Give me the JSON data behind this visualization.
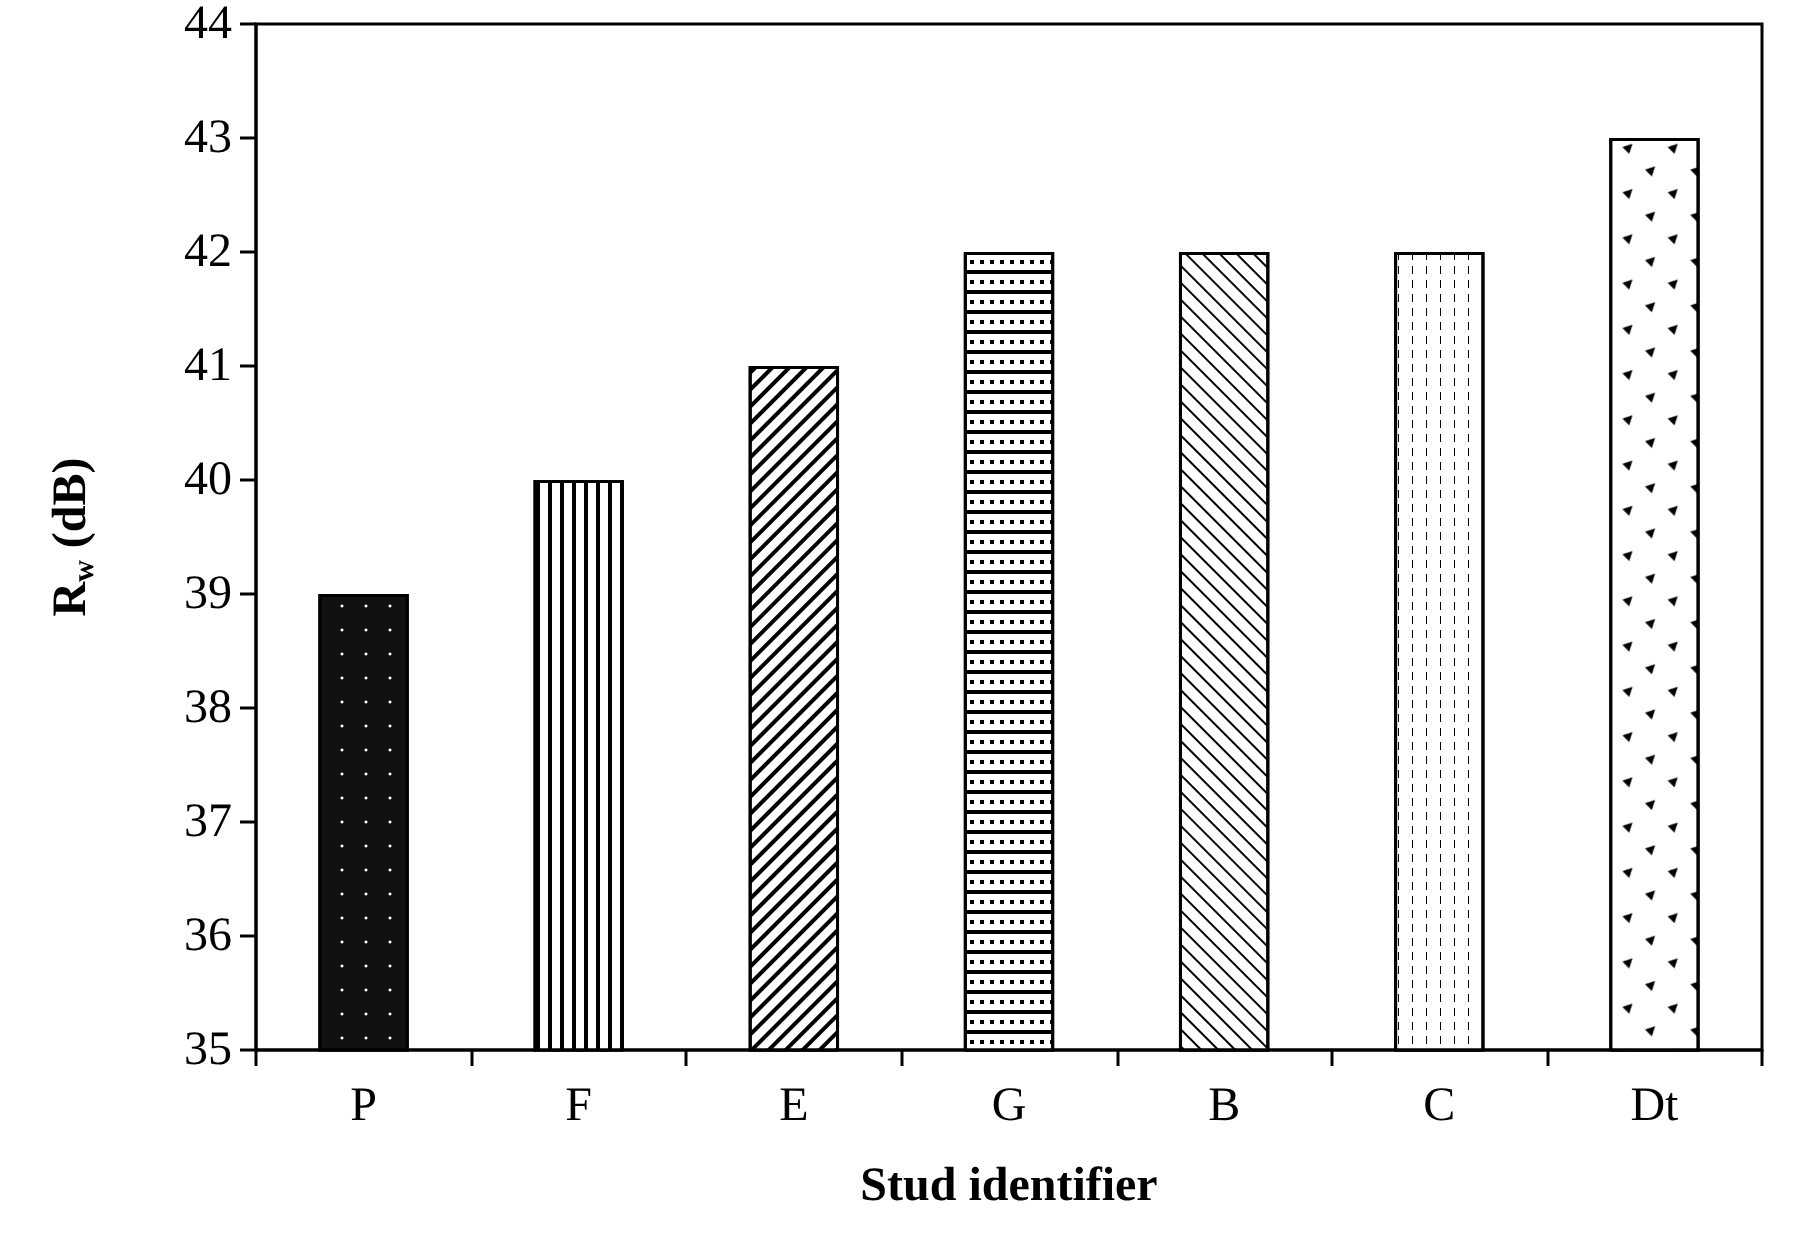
{
  "chart_data": {
    "type": "bar",
    "xlabel": "Stud identifier",
    "ylabel": "R$_{w}$ (dB)",
    "categories": [
      "P",
      "F",
      "E",
      "G",
      "B",
      "C",
      "Dt"
    ],
    "values": [
      39,
      40,
      41,
      42,
      42,
      42,
      43
    ],
    "colors": [
      "#111111",
      "#ffffff",
      "#ffffff",
      "#ffffff",
      "#ffffff",
      "#ffffff",
      "#ffffff"
    ],
    "ylim": [
      35,
      44
    ],
    "yticks": [
      35,
      36,
      37,
      38,
      39,
      40,
      41,
      42,
      43,
      44
    ]
  }
}
